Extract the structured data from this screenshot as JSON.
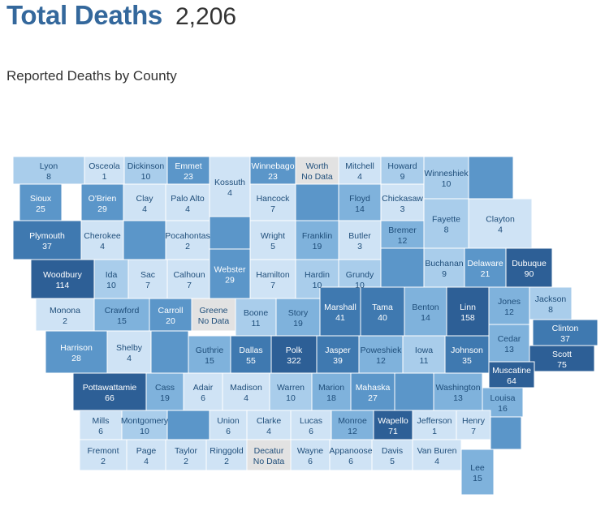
{
  "header": {
    "title": "Total Deaths",
    "total": "2,206"
  },
  "subtitle": "Reported Deaths by County",
  "colors": {
    "scale": [
      "#cfe3f5",
      "#a9cdeb",
      "#7fb2dc",
      "#5b96c9",
      "#3f79b0",
      "#2d5f96"
    ],
    "no_data": "#e2e2e2",
    "border": "#ffffff",
    "dark_text": "#ffffff",
    "light_text": "#1f4e7a"
  },
  "counties": [
    {
      "name": "Lyon",
      "value": "8"
    },
    {
      "name": "Osceola",
      "value": "1"
    },
    {
      "name": "Dickinson",
      "value": "10"
    },
    {
      "name": "Emmet",
      "value": "23"
    },
    {
      "name": "Kossuth",
      "value": "4"
    },
    {
      "name": "Winnebago",
      "value": "23"
    },
    {
      "name": "Worth",
      "value": "No Data"
    },
    {
      "name": "Mitchell",
      "value": "4"
    },
    {
      "name": "Howard",
      "value": "9"
    },
    {
      "name": "Winneshiek",
      "value": "10"
    },
    {
      "name": "Allamakee",
      "value": ""
    },
    {
      "name": "Sioux",
      "value": "25"
    },
    {
      "name": "O'Brien",
      "value": "29"
    },
    {
      "name": "Clay",
      "value": "4"
    },
    {
      "name": "Palo Alto",
      "value": "4"
    },
    {
      "name": "Hancock",
      "value": "7"
    },
    {
      "name": "Cerro Gordo",
      "value": ""
    },
    {
      "name": "Floyd",
      "value": "14"
    },
    {
      "name": "Chickasaw",
      "value": "3"
    },
    {
      "name": "Fayette",
      "value": "8"
    },
    {
      "name": "Clayton",
      "value": "4"
    },
    {
      "name": "Plymouth",
      "value": "37"
    },
    {
      "name": "Cherokee",
      "value": "4"
    },
    {
      "name": "Buena Vista",
      "value": ""
    },
    {
      "name": "Pocahontas",
      "value": "2"
    },
    {
      "name": "Humboldt",
      "value": ""
    },
    {
      "name": "Wright",
      "value": "5"
    },
    {
      "name": "Franklin",
      "value": "19"
    },
    {
      "name": "Butler",
      "value": "3"
    },
    {
      "name": "Bremer",
      "value": "12"
    },
    {
      "name": "Black Hawk",
      "value": ""
    },
    {
      "name": "Buchanan",
      "value": "9"
    },
    {
      "name": "Delaware",
      "value": "21"
    },
    {
      "name": "Dubuque",
      "value": "90"
    },
    {
      "name": "Woodbury",
      "value": "114"
    },
    {
      "name": "Ida",
      "value": "10"
    },
    {
      "name": "Sac",
      "value": "7"
    },
    {
      "name": "Calhoun",
      "value": "7"
    },
    {
      "name": "Webster",
      "value": "29"
    },
    {
      "name": "Hamilton",
      "value": "7"
    },
    {
      "name": "Hardin",
      "value": "10"
    },
    {
      "name": "Grundy",
      "value": "10"
    },
    {
      "name": "Monona",
      "value": "2"
    },
    {
      "name": "Crawford",
      "value": "15"
    },
    {
      "name": "Carroll",
      "value": "20"
    },
    {
      "name": "Greene",
      "value": "No Data"
    },
    {
      "name": "Boone",
      "value": "11"
    },
    {
      "name": "Story",
      "value": "19"
    },
    {
      "name": "Marshall",
      "value": "41"
    },
    {
      "name": "Tama",
      "value": "40"
    },
    {
      "name": "Benton",
      "value": "14"
    },
    {
      "name": "Linn",
      "value": "158"
    },
    {
      "name": "Jones",
      "value": "12"
    },
    {
      "name": "Jackson",
      "value": "8"
    },
    {
      "name": "Clinton",
      "value": "37"
    },
    {
      "name": "Cedar",
      "value": "13"
    },
    {
      "name": "Harrison",
      "value": "28"
    },
    {
      "name": "Shelby",
      "value": "4"
    },
    {
      "name": "Audubon",
      "value": ""
    },
    {
      "name": "Guthrie",
      "value": "15"
    },
    {
      "name": "Dallas",
      "value": "55"
    },
    {
      "name": "Polk",
      "value": "322"
    },
    {
      "name": "Jasper",
      "value": "39"
    },
    {
      "name": "Poweshiek",
      "value": "12"
    },
    {
      "name": "Iowa",
      "value": "11"
    },
    {
      "name": "Johnson",
      "value": "35"
    },
    {
      "name": "Scott",
      "value": "75"
    },
    {
      "name": "Muscatine",
      "value": "64"
    },
    {
      "name": "Pottawattamie",
      "value": "66"
    },
    {
      "name": "Cass",
      "value": "19"
    },
    {
      "name": "Adair",
      "value": "6"
    },
    {
      "name": "Madison",
      "value": "4"
    },
    {
      "name": "Warren",
      "value": "10"
    },
    {
      "name": "Marion",
      "value": "18"
    },
    {
      "name": "Mahaska",
      "value": "27"
    },
    {
      "name": "Keokuk",
      "value": ""
    },
    {
      "name": "Washington",
      "value": "13"
    },
    {
      "name": "Louisa",
      "value": "16"
    },
    {
      "name": "Mills",
      "value": "6"
    },
    {
      "name": "Montgomery",
      "value": "10"
    },
    {
      "name": "Adams",
      "value": ""
    },
    {
      "name": "Union",
      "value": "6"
    },
    {
      "name": "Clarke",
      "value": "4"
    },
    {
      "name": "Lucas",
      "value": "6"
    },
    {
      "name": "Monroe",
      "value": "12"
    },
    {
      "name": "Wapello",
      "value": "71"
    },
    {
      "name": "Jefferson",
      "value": "1"
    },
    {
      "name": "Henry",
      "value": "7"
    },
    {
      "name": "Des Moines",
      "value": ""
    },
    {
      "name": "Fremont",
      "value": "2"
    },
    {
      "name": "Page",
      "value": "4"
    },
    {
      "name": "Taylor",
      "value": "2"
    },
    {
      "name": "Ringgold",
      "value": "2"
    },
    {
      "name": "Decatur",
      "value": "No Data"
    },
    {
      "name": "Wayne",
      "value": "6"
    },
    {
      "name": "Appanoose",
      "value": "6"
    },
    {
      "name": "Davis",
      "value": "5"
    },
    {
      "name": "Van Buren",
      "value": "4"
    },
    {
      "name": "Lee",
      "value": "15"
    }
  ]
}
